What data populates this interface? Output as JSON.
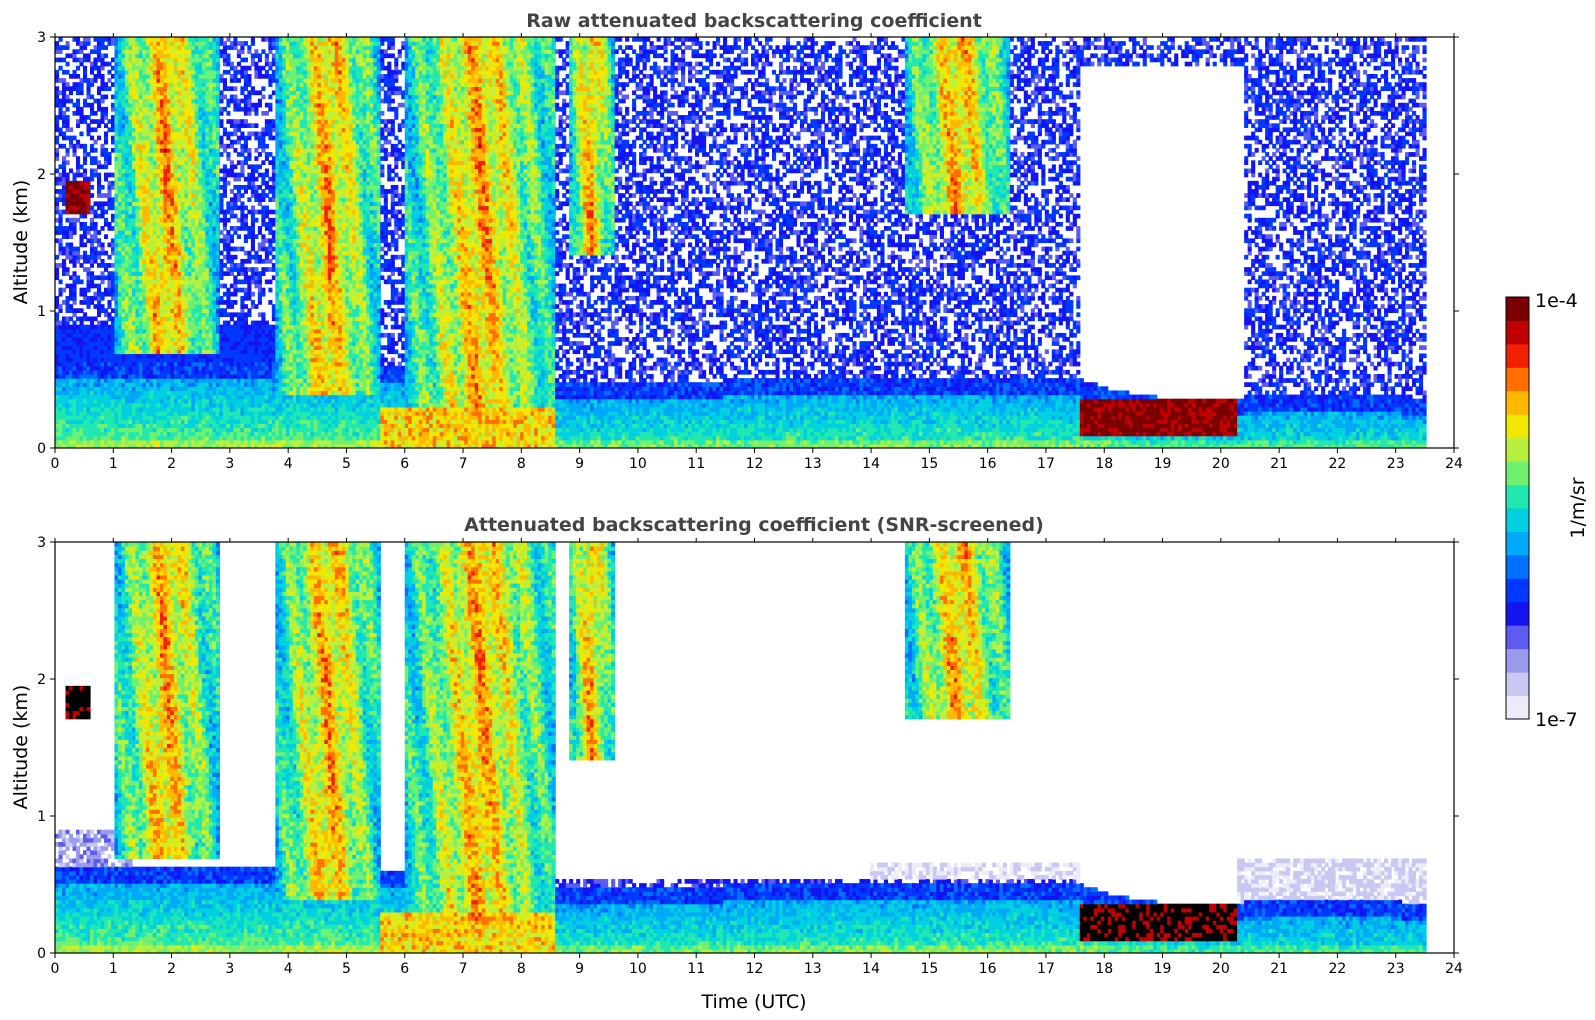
{
  "chart_data": [
    {
      "type": "heatmap",
      "title": "Raw attenuated backscattering coefficient",
      "xlabel": "",
      "ylabel": "Altitude (km)",
      "xlim": [
        0,
        24
      ],
      "ylim": [
        0,
        3
      ],
      "xticks": [
        "0",
        "1",
        "2",
        "3",
        "4",
        "5",
        "6",
        "7",
        "8",
        "9",
        "10",
        "11",
        "12",
        "13",
        "14",
        "15",
        "16",
        "17",
        "18",
        "19",
        "20",
        "21",
        "22",
        "23",
        "24"
      ],
      "yticks": [
        "0",
        "1",
        "2",
        "3"
      ],
      "data_end_hour": 23.5,
      "boundary_layer_top_km": [
        [
          0,
          0.5
        ],
        [
          5.5,
          0.5
        ],
        [
          8.7,
          0.35
        ],
        [
          12,
          0.38
        ],
        [
          16,
          0.4
        ],
        [
          17.6,
          0.38
        ],
        [
          18.2,
          0.3
        ],
        [
          19,
          0.25
        ],
        [
          20.3,
          0.25
        ],
        [
          21,
          0.28
        ],
        [
          23.5,
          0.25
        ]
      ],
      "features": [
        {
          "name": "low-cloud-morning",
          "start_h": 0.2,
          "end_h": 0.6,
          "base_km": 1.7,
          "top_km": 1.95,
          "max_intensity": "1e-4"
        },
        {
          "name": "cirrus-band-1",
          "start_h": 1.0,
          "end_h": 2.8,
          "base_km": 0.7,
          "top_km": 3.0
        },
        {
          "name": "cirrus-band-2",
          "start_h": 3.8,
          "end_h": 5.6,
          "base_km": 0.4,
          "top_km": 3.0
        },
        {
          "name": "fall-streaks",
          "start_h": 6.0,
          "end_h": 8.6,
          "base_km": 0.2,
          "top_km": 3.0
        },
        {
          "name": "mid-cloud",
          "start_h": 8.8,
          "end_h": 9.6,
          "base_km": 1.4,
          "top_km": 3.0
        },
        {
          "name": "cloud-afternoon",
          "start_h": 14.6,
          "end_h": 16.4,
          "base_km": 1.7,
          "top_km": 3.0
        },
        {
          "name": "fog-layer",
          "start_h": 17.6,
          "end_h": 20.3,
          "base_km": 0.1,
          "top_km": 0.35,
          "max_intensity": "1e-4"
        }
      ]
    },
    {
      "type": "heatmap",
      "title": "Attenuated backscattering coefficient (SNR-screened)",
      "xlabel": "Time (UTC)",
      "ylabel": "Altitude (km)",
      "xlim": [
        0,
        24
      ],
      "ylim": [
        0,
        3
      ],
      "xticks": [
        "0",
        "1",
        "2",
        "3",
        "4",
        "5",
        "6",
        "7",
        "8",
        "9",
        "10",
        "11",
        "12",
        "13",
        "14",
        "15",
        "16",
        "17",
        "18",
        "19",
        "20",
        "21",
        "22",
        "23",
        "24"
      ],
      "yticks": [
        "0",
        "1",
        "2",
        "3"
      ],
      "data_end_hour": 23.5,
      "screened_out_above_boundary_layer": true
    }
  ],
  "colorbar": {
    "label": "1/m/sr",
    "max_label": "1e-4",
    "min_label": "1e-7",
    "colors": [
      "#ecebf8",
      "#c8c8f2",
      "#9a9aee",
      "#5c5cf0",
      "#1414f2",
      "#0038ff",
      "#0070ff",
      "#00a8f8",
      "#00d0e0",
      "#20e8b0",
      "#70f070",
      "#b8f040",
      "#f0e800",
      "#ffb800",
      "#ff7000",
      "#f02000",
      "#c00000",
      "#7a0000"
    ]
  }
}
